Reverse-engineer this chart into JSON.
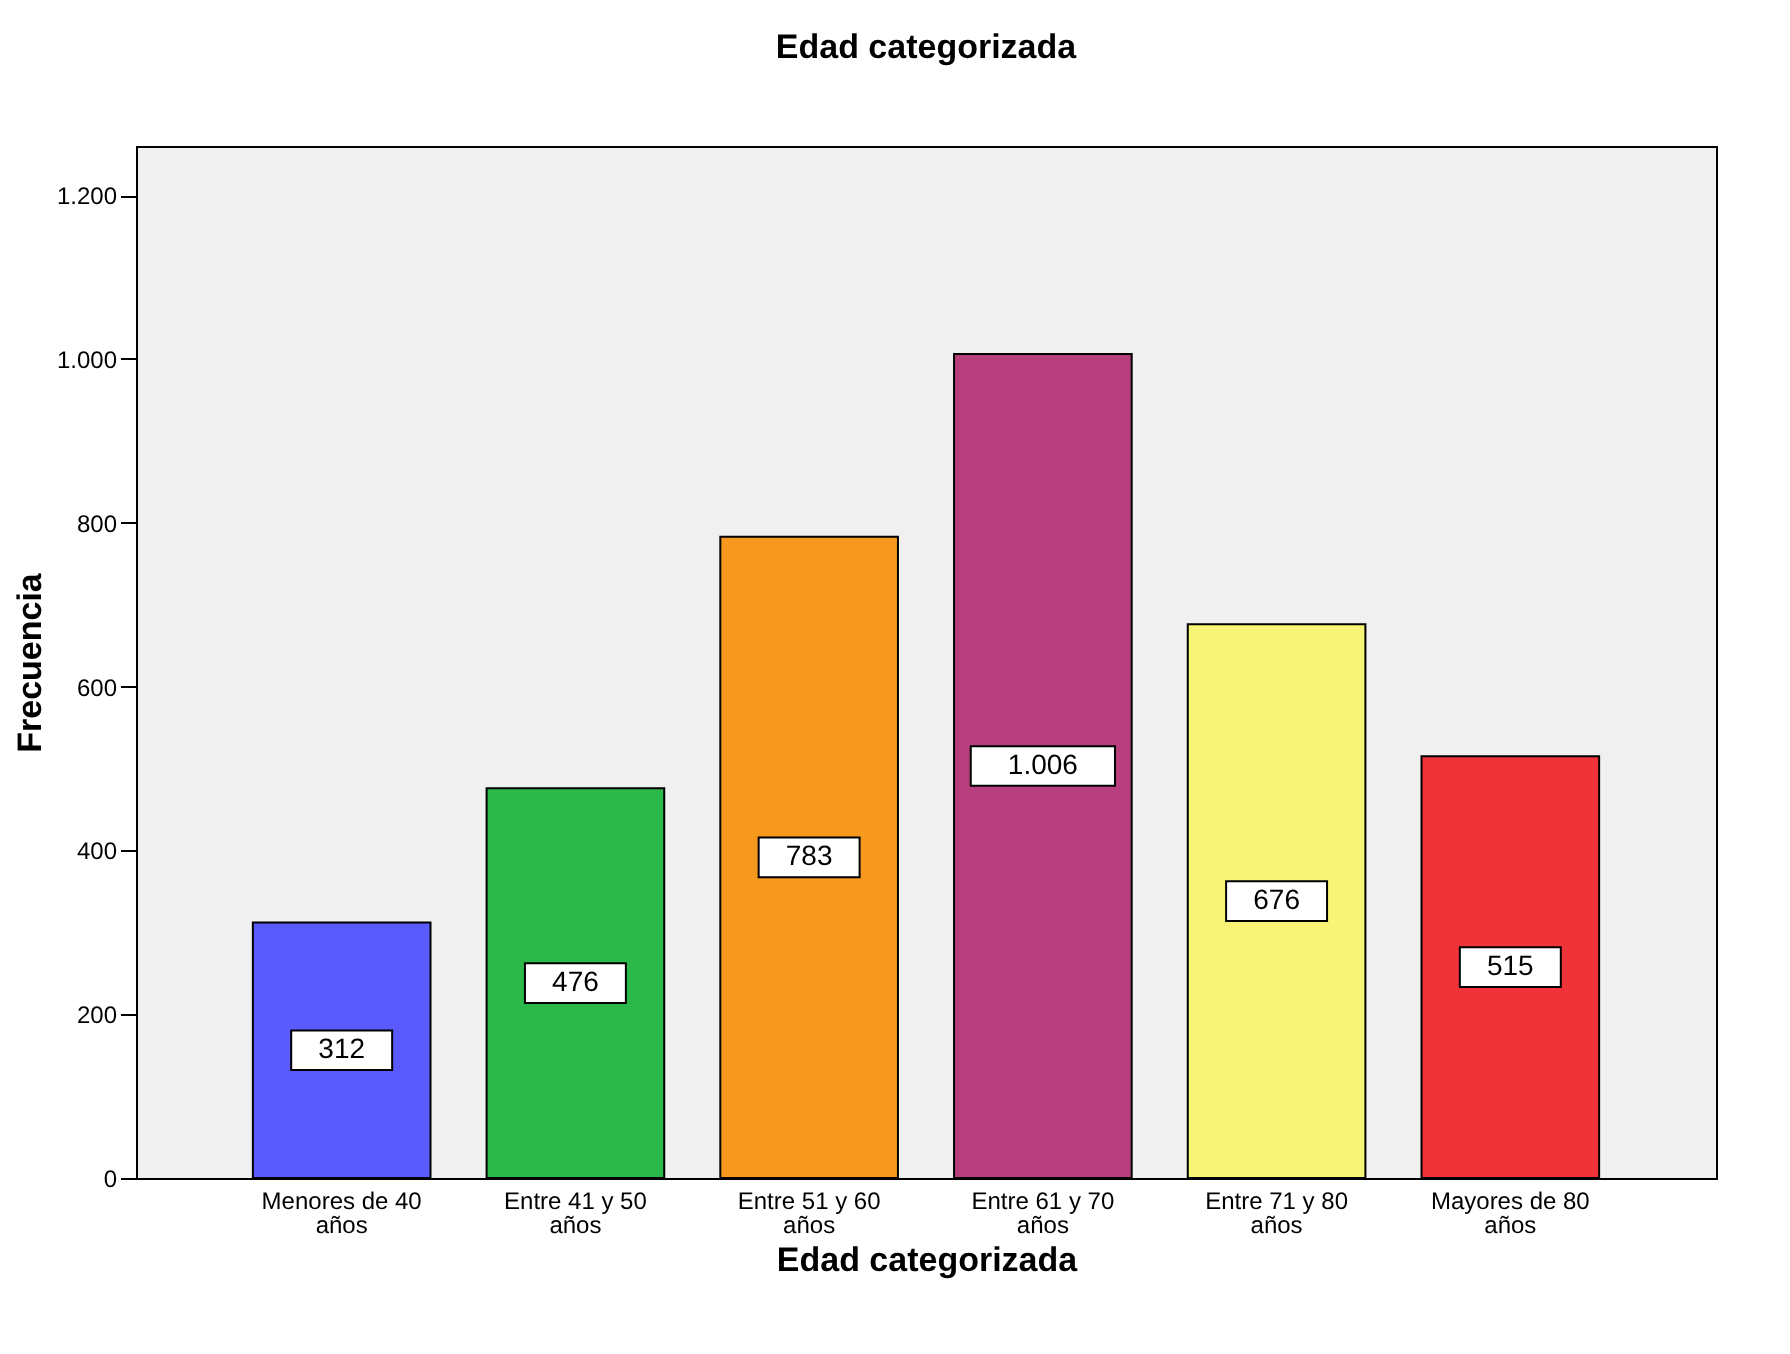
{
  "chart_data": {
    "type": "bar",
    "title": "Edad categorizada",
    "xlabel": "Edad categorizada",
    "ylabel": "Frecuencia",
    "categories": [
      "Menores de 40 años",
      "Entre 41 y 50 años",
      "Entre 51 y 60 años",
      "Entre 61 y 70 años",
      "Entre 71 y 80 años",
      "Mayores de 80 años"
    ],
    "values": [
      312,
      476,
      783,
      1006,
      676,
      515
    ],
    "colors": [
      "#5a5aff",
      "#2db84a",
      "#f7991f",
      "#b83f7d",
      "#f8f576",
      "#ef3338"
    ],
    "ylim": [
      0,
      1260
    ],
    "yticks": [
      0,
      200,
      400,
      600,
      800,
      {
        "value": 1000,
        "label": "1.000"
      },
      {
        "value": 1200,
        "label": "1.200"
      }
    ],
    "value_labels": [
      "312",
      "476",
      "783",
      "1.006",
      "676",
      "515"
    ],
    "grid": false
  }
}
